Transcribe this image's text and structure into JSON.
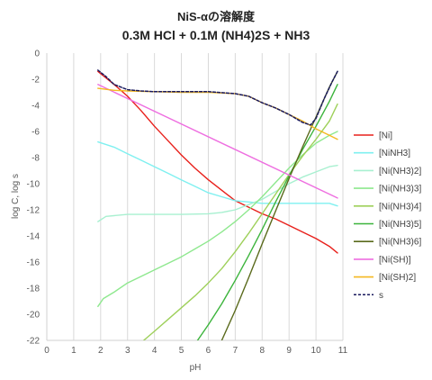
{
  "chart_data": {
    "type": "line",
    "title": "NiS-αの溶解度",
    "subtitle": "0.3M HCl + 0.1M (NH4)2S + NH3",
    "xlabel": "pH",
    "ylabel": "log C, log s",
    "xlim": [
      0,
      11
    ],
    "ylim": [
      -22,
      0
    ],
    "xticks": [
      "0",
      "1",
      "2",
      "3",
      "4",
      "5",
      "6",
      "7",
      "8",
      "9",
      "10",
      "11"
    ],
    "yticks": [
      "0",
      "-2",
      "-4",
      "-6",
      "-8",
      "-10",
      "-12",
      "-14",
      "-16",
      "-18",
      "-20",
      "-22"
    ],
    "grid": "vertical",
    "legend_position": "right",
    "series": [
      {
        "name": "[Ni]",
        "color": "#e8201b",
        "dash": false,
        "points": [
          [
            1.9,
            -1.4
          ],
          [
            2.5,
            -2.4
          ],
          [
            3,
            -3.3
          ],
          [
            3.5,
            -4.4
          ],
          [
            4,
            -5.6
          ],
          [
            4.5,
            -6.7
          ],
          [
            5,
            -7.8
          ],
          [
            5.5,
            -8.8
          ],
          [
            6,
            -9.7
          ],
          [
            6.5,
            -10.5
          ],
          [
            7,
            -11.3
          ],
          [
            7.5,
            -11.8
          ],
          [
            8,
            -12.3
          ],
          [
            8.5,
            -12.7
          ],
          [
            9,
            -13.2
          ],
          [
            9.5,
            -13.7
          ],
          [
            10,
            -14.2
          ],
          [
            10.5,
            -14.8
          ],
          [
            10.8,
            -15.3
          ]
        ]
      },
      {
        "name": "[NiNH3]",
        "color": "#7ff0f0",
        "dash": false,
        "points": [
          [
            1.9,
            -6.8
          ],
          [
            2.5,
            -7.2
          ],
          [
            3,
            -7.7
          ],
          [
            3.5,
            -8.2
          ],
          [
            4,
            -8.7
          ],
          [
            4.5,
            -9.2
          ],
          [
            5,
            -9.7
          ],
          [
            5.5,
            -10.2
          ],
          [
            6,
            -10.7
          ],
          [
            6.5,
            -11.0
          ],
          [
            7,
            -11.3
          ],
          [
            7.5,
            -11.4
          ],
          [
            8,
            -11.5
          ],
          [
            8.5,
            -11.5
          ],
          [
            9,
            -11.5
          ],
          [
            9.5,
            -11.5
          ],
          [
            10,
            -11.5
          ],
          [
            10.5,
            -11.5
          ],
          [
            10.8,
            -11.7
          ]
        ]
      },
      {
        "name": "[Ni(NH3)2]",
        "color": "#a8f0d0",
        "dash": false,
        "points": [
          [
            1.9,
            -12.9
          ],
          [
            2.2,
            -12.5
          ],
          [
            3,
            -12.35
          ],
          [
            4,
            -12.35
          ],
          [
            5,
            -12.35
          ],
          [
            6,
            -12.3
          ],
          [
            6.5,
            -12.2
          ],
          [
            7,
            -12.0
          ],
          [
            7.5,
            -11.6
          ],
          [
            8,
            -11.2
          ],
          [
            8.5,
            -10.6
          ],
          [
            9,
            -10.0
          ],
          [
            9.5,
            -9.5
          ],
          [
            10,
            -9.1
          ],
          [
            10.5,
            -8.7
          ],
          [
            10.8,
            -8.6
          ]
        ]
      },
      {
        "name": "[Ni(NH3)3]",
        "color": "#8ee88e",
        "dash": false,
        "points": [
          [
            1.9,
            -19.4
          ],
          [
            2.1,
            -18.8
          ],
          [
            2.5,
            -18.3
          ],
          [
            3,
            -17.6
          ],
          [
            3.5,
            -17.1
          ],
          [
            4,
            -16.6
          ],
          [
            4.5,
            -16.1
          ],
          [
            5,
            -15.6
          ],
          [
            5.5,
            -15.0
          ],
          [
            6,
            -14.4
          ],
          [
            6.5,
            -13.7
          ],
          [
            7,
            -12.9
          ],
          [
            7.5,
            -12.0
          ],
          [
            8,
            -11.0
          ],
          [
            8.5,
            -9.9
          ],
          [
            9,
            -8.8
          ],
          [
            9.5,
            -7.8
          ],
          [
            10,
            -6.9
          ],
          [
            10.5,
            -6.3
          ],
          [
            10.8,
            -6.0
          ]
        ]
      },
      {
        "name": "[Ni(NH3)4]",
        "color": "#9ed05a",
        "dash": false,
        "points": [
          [
            3.6,
            -22.0
          ],
          [
            4,
            -21.3
          ],
          [
            4.5,
            -20.4
          ],
          [
            5,
            -19.5
          ],
          [
            5.5,
            -18.6
          ],
          [
            6,
            -17.6
          ],
          [
            6.5,
            -16.5
          ],
          [
            7,
            -15.2
          ],
          [
            7.5,
            -13.8
          ],
          [
            8,
            -12.3
          ],
          [
            8.5,
            -10.8
          ],
          [
            9,
            -9.3
          ],
          [
            9.5,
            -7.9
          ],
          [
            10,
            -6.6
          ],
          [
            10.5,
            -5.2
          ],
          [
            10.8,
            -3.9
          ]
        ]
      },
      {
        "name": "[Ni(NH3)5]",
        "color": "#3cb43c",
        "dash": false,
        "points": [
          [
            5.6,
            -22.0
          ],
          [
            6,
            -20.8
          ],
          [
            6.5,
            -19.2
          ],
          [
            7,
            -17.4
          ],
          [
            7.5,
            -15.5
          ],
          [
            8,
            -13.5
          ],
          [
            8.5,
            -11.4
          ],
          [
            9,
            -9.4
          ],
          [
            9.5,
            -7.4
          ],
          [
            10,
            -5.6
          ],
          [
            10.5,
            -3.7
          ],
          [
            10.8,
            -2.4
          ]
        ]
      },
      {
        "name": "[Ni(NH3)6]",
        "color": "#5a6a1c",
        "dash": false,
        "points": [
          [
            6.5,
            -22.0
          ],
          [
            7,
            -19.7
          ],
          [
            7.5,
            -17.2
          ],
          [
            8,
            -14.6
          ],
          [
            8.5,
            -12.1
          ],
          [
            9,
            -9.6
          ],
          [
            9.5,
            -7.2
          ],
          [
            10,
            -4.9
          ],
          [
            10.5,
            -2.6
          ],
          [
            10.8,
            -1.4
          ]
        ]
      },
      {
        "name": "[Ni(SH)]",
        "color": "#ee6ee0",
        "dash": false,
        "points": [
          [
            1.9,
            -2.4
          ],
          [
            10.8,
            -11.1
          ]
        ]
      },
      {
        "name": "[Ni(SH)2]",
        "color": "#f4b820",
        "dash": false,
        "points": [
          [
            1.9,
            -2.7
          ],
          [
            2.5,
            -2.85
          ],
          [
            3,
            -2.9
          ],
          [
            4,
            -2.95
          ],
          [
            5,
            -3.0
          ],
          [
            6,
            -3.0
          ],
          [
            7,
            -3.1
          ],
          [
            7.5,
            -3.3
          ],
          [
            8,
            -3.8
          ],
          [
            8.5,
            -4.2
          ],
          [
            9,
            -4.7
          ],
          [
            9.5,
            -5.2
          ],
          [
            10,
            -5.8
          ],
          [
            10.5,
            -6.3
          ],
          [
            10.8,
            -6.6
          ]
        ]
      },
      {
        "name": "s",
        "color": "#1a1a5e",
        "dash": true,
        "points": [
          [
            1.9,
            -1.3
          ],
          [
            2.2,
            -1.8
          ],
          [
            2.5,
            -2.4
          ],
          [
            3,
            -2.8
          ],
          [
            3.5,
            -2.9
          ],
          [
            4,
            -2.95
          ],
          [
            5,
            -2.95
          ],
          [
            6,
            -2.95
          ],
          [
            7,
            -3.1
          ],
          [
            7.5,
            -3.3
          ],
          [
            8,
            -3.8
          ],
          [
            8.5,
            -4.2
          ],
          [
            9,
            -4.7
          ],
          [
            9.5,
            -5.3
          ],
          [
            9.8,
            -5.5
          ],
          [
            10,
            -5.0
          ],
          [
            10.3,
            -3.5
          ],
          [
            10.6,
            -2.2
          ],
          [
            10.8,
            -1.4
          ]
        ]
      }
    ]
  }
}
